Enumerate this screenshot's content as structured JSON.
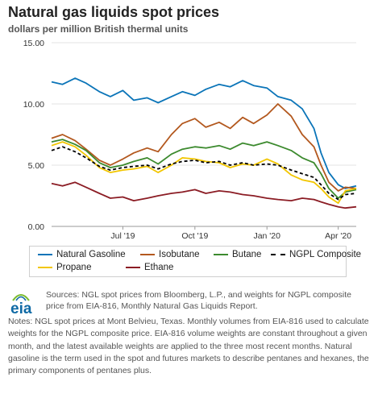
{
  "chart_data": {
    "type": "line",
    "title": "Natural gas liquids spot prices",
    "subtitle": "dollars per million British thermal units",
    "xlabel": "",
    "ylabel": "",
    "ylim": [
      0,
      15
    ],
    "yticks": [
      "15.00",
      "10.00",
      "5.00",
      "0.00"
    ],
    "xticks": [
      "Jul '19",
      "Oct '19",
      "Jan '20",
      "Apr '20"
    ],
    "x_range": [
      "2019-04-01",
      "2020-04-24"
    ],
    "grid": true,
    "legend_position": "bottom",
    "series": [
      {
        "name": "Natural Gasoline",
        "color": "#0a74b8",
        "points": [
          [
            "2019-04-01",
            11.8
          ],
          [
            "2019-04-15",
            11.6
          ],
          [
            "2019-05-01",
            12.1
          ],
          [
            "2019-05-15",
            11.7
          ],
          [
            "2019-06-01",
            11.0
          ],
          [
            "2019-06-15",
            10.6
          ],
          [
            "2019-07-01",
            11.1
          ],
          [
            "2019-07-15",
            10.3
          ],
          [
            "2019-08-01",
            10.5
          ],
          [
            "2019-08-15",
            10.1
          ],
          [
            "2019-09-01",
            10.6
          ],
          [
            "2019-09-15",
            11.0
          ],
          [
            "2019-10-01",
            10.7
          ],
          [
            "2019-10-15",
            11.2
          ],
          [
            "2019-11-01",
            11.6
          ],
          [
            "2019-11-15",
            11.4
          ],
          [
            "2019-12-01",
            11.9
          ],
          [
            "2019-12-15",
            11.5
          ],
          [
            "2020-01-01",
            11.3
          ],
          [
            "2020-01-15",
            10.6
          ],
          [
            "2020-02-01",
            10.3
          ],
          [
            "2020-02-15",
            9.6
          ],
          [
            "2020-03-01",
            8.0
          ],
          [
            "2020-03-10",
            6.0
          ],
          [
            "2020-03-20",
            4.4
          ],
          [
            "2020-04-01",
            3.4
          ],
          [
            "2020-04-10",
            3.1
          ],
          [
            "2020-04-24",
            3.3
          ]
        ]
      },
      {
        "name": "Isobutane",
        "color": "#b3581e",
        "points": [
          [
            "2019-04-01",
            7.2
          ],
          [
            "2019-04-15",
            7.5
          ],
          [
            "2019-05-01",
            7.0
          ],
          [
            "2019-05-15",
            6.3
          ],
          [
            "2019-06-01",
            5.4
          ],
          [
            "2019-06-15",
            5.0
          ],
          [
            "2019-07-01",
            5.5
          ],
          [
            "2019-07-15",
            6.0
          ],
          [
            "2019-08-01",
            6.4
          ],
          [
            "2019-08-15",
            6.1
          ],
          [
            "2019-09-01",
            7.5
          ],
          [
            "2019-09-15",
            8.4
          ],
          [
            "2019-10-01",
            8.8
          ],
          [
            "2019-10-15",
            8.1
          ],
          [
            "2019-11-01",
            8.5
          ],
          [
            "2019-11-15",
            8.0
          ],
          [
            "2019-12-01",
            8.9
          ],
          [
            "2019-12-15",
            8.4
          ],
          [
            "2020-01-01",
            9.1
          ],
          [
            "2020-01-15",
            10.0
          ],
          [
            "2020-02-01",
            9.0
          ],
          [
            "2020-02-15",
            7.5
          ],
          [
            "2020-03-01",
            6.5
          ],
          [
            "2020-03-10",
            5.0
          ],
          [
            "2020-03-20",
            3.6
          ],
          [
            "2020-04-01",
            2.9
          ],
          [
            "2020-04-10",
            3.2
          ],
          [
            "2020-04-24",
            3.1
          ]
        ]
      },
      {
        "name": "Butane",
        "color": "#3c8a2e",
        "points": [
          [
            "2019-04-01",
            6.9
          ],
          [
            "2019-04-15",
            7.1
          ],
          [
            "2019-05-01",
            6.7
          ],
          [
            "2019-05-15",
            6.2
          ],
          [
            "2019-06-01",
            5.2
          ],
          [
            "2019-06-15",
            4.8
          ],
          [
            "2019-07-01",
            5.0
          ],
          [
            "2019-07-15",
            5.3
          ],
          [
            "2019-08-01",
            5.6
          ],
          [
            "2019-08-15",
            5.1
          ],
          [
            "2019-09-01",
            5.9
          ],
          [
            "2019-09-15",
            6.3
          ],
          [
            "2019-10-01",
            6.5
          ],
          [
            "2019-10-15",
            6.4
          ],
          [
            "2019-11-01",
            6.6
          ],
          [
            "2019-11-15",
            6.3
          ],
          [
            "2019-12-01",
            6.8
          ],
          [
            "2019-12-15",
            6.6
          ],
          [
            "2020-01-01",
            6.9
          ],
          [
            "2020-01-15",
            6.6
          ],
          [
            "2020-02-01",
            6.2
          ],
          [
            "2020-02-15",
            5.6
          ],
          [
            "2020-03-01",
            5.2
          ],
          [
            "2020-03-10",
            4.3
          ],
          [
            "2020-03-20",
            3.1
          ],
          [
            "2020-04-01",
            2.3
          ],
          [
            "2020-04-10",
            2.8
          ],
          [
            "2020-04-24",
            3.0
          ]
        ]
      },
      {
        "name": "NGPL Composite",
        "color": "#000000",
        "dashed": true,
        "points": [
          [
            "2019-04-01",
            6.2
          ],
          [
            "2019-04-15",
            6.5
          ],
          [
            "2019-05-01",
            6.1
          ],
          [
            "2019-05-15",
            5.6
          ],
          [
            "2019-06-01",
            4.9
          ],
          [
            "2019-06-15",
            4.6
          ],
          [
            "2019-07-01",
            4.8
          ],
          [
            "2019-07-15",
            4.9
          ],
          [
            "2019-08-01",
            5.0
          ],
          [
            "2019-08-15",
            4.7
          ],
          [
            "2019-09-01",
            5.1
          ],
          [
            "2019-09-15",
            5.3
          ],
          [
            "2019-10-01",
            5.4
          ],
          [
            "2019-10-15",
            5.2
          ],
          [
            "2019-11-01",
            5.3
          ],
          [
            "2019-11-15",
            5.0
          ],
          [
            "2019-12-01",
            5.2
          ],
          [
            "2019-12-15",
            5.0
          ],
          [
            "2020-01-01",
            5.1
          ],
          [
            "2020-01-15",
            5.0
          ],
          [
            "2020-02-01",
            4.6
          ],
          [
            "2020-02-15",
            4.3
          ],
          [
            "2020-03-01",
            4.0
          ],
          [
            "2020-03-10",
            3.4
          ],
          [
            "2020-03-20",
            2.7
          ],
          [
            "2020-04-01",
            2.2
          ],
          [
            "2020-04-10",
            2.6
          ],
          [
            "2020-04-24",
            2.7
          ]
        ]
      },
      {
        "name": "Propane",
        "color": "#f2c600",
        "points": [
          [
            "2019-04-01",
            6.6
          ],
          [
            "2019-04-15",
            6.9
          ],
          [
            "2019-05-01",
            6.5
          ],
          [
            "2019-05-15",
            5.8
          ],
          [
            "2019-06-01",
            4.8
          ],
          [
            "2019-06-15",
            4.4
          ],
          [
            "2019-07-01",
            4.6
          ],
          [
            "2019-07-15",
            4.7
          ],
          [
            "2019-08-01",
            4.9
          ],
          [
            "2019-08-15",
            4.4
          ],
          [
            "2019-09-01",
            5.0
          ],
          [
            "2019-09-15",
            5.6
          ],
          [
            "2019-10-01",
            5.5
          ],
          [
            "2019-10-15",
            5.3
          ],
          [
            "2019-11-01",
            5.2
          ],
          [
            "2019-11-15",
            4.8
          ],
          [
            "2019-12-01",
            5.1
          ],
          [
            "2019-12-15",
            5.0
          ],
          [
            "2020-01-01",
            5.5
          ],
          [
            "2020-01-15",
            5.1
          ],
          [
            "2020-02-01",
            4.2
          ],
          [
            "2020-02-15",
            3.8
          ],
          [
            "2020-03-01",
            3.6
          ],
          [
            "2020-03-10",
            3.1
          ],
          [
            "2020-03-20",
            2.4
          ],
          [
            "2020-04-01",
            1.9
          ],
          [
            "2020-04-10",
            2.9
          ],
          [
            "2020-04-24",
            3.1
          ]
        ]
      },
      {
        "name": "Ethane",
        "color": "#8b1c24",
        "points": [
          [
            "2019-04-01",
            3.5
          ],
          [
            "2019-04-15",
            3.3
          ],
          [
            "2019-05-01",
            3.6
          ],
          [
            "2019-05-15",
            3.2
          ],
          [
            "2019-06-01",
            2.7
          ],
          [
            "2019-06-15",
            2.3
          ],
          [
            "2019-07-01",
            2.4
          ],
          [
            "2019-07-15",
            2.1
          ],
          [
            "2019-08-01",
            2.3
          ],
          [
            "2019-08-15",
            2.5
          ],
          [
            "2019-09-01",
            2.7
          ],
          [
            "2019-09-15",
            2.8
          ],
          [
            "2019-10-01",
            3.0
          ],
          [
            "2019-10-15",
            2.7
          ],
          [
            "2019-11-01",
            2.9
          ],
          [
            "2019-11-15",
            2.8
          ],
          [
            "2019-12-01",
            2.6
          ],
          [
            "2019-12-15",
            2.5
          ],
          [
            "2020-01-01",
            2.3
          ],
          [
            "2020-01-15",
            2.2
          ],
          [
            "2020-02-01",
            2.1
          ],
          [
            "2020-02-15",
            2.3
          ],
          [
            "2020-03-01",
            2.2
          ],
          [
            "2020-03-10",
            2.0
          ],
          [
            "2020-03-20",
            1.8
          ],
          [
            "2020-04-01",
            1.6
          ],
          [
            "2020-04-10",
            1.5
          ],
          [
            "2020-04-24",
            1.6
          ]
        ]
      }
    ]
  },
  "legend": {
    "row1": [
      "Natural Gasoline",
      "Isobutane",
      "Butane",
      "NGPL Composite"
    ],
    "row2": [
      "Propane",
      "Ethane"
    ]
  },
  "logo": {
    "text": "eia"
  },
  "footer": {
    "sources": "Sources: NGL spot prices from Bloomberg, L.P., and weights for NGPL composite price from EIA-816, Monthly Natural Gas Liquids Report.",
    "notes": "Notes: NGL spot prices at Mont Belvieu, Texas. Monthly volumes from EIA-816 used to calculate weights for the NGPL composite price. EIA-816 volume weights are constant throughout a given month, and the latest available weights are applied to the three most recent months. Natural gasoline is the term used in the spot and futures markets to describe pentanes and hexanes, the primary components of pentanes plus."
  }
}
